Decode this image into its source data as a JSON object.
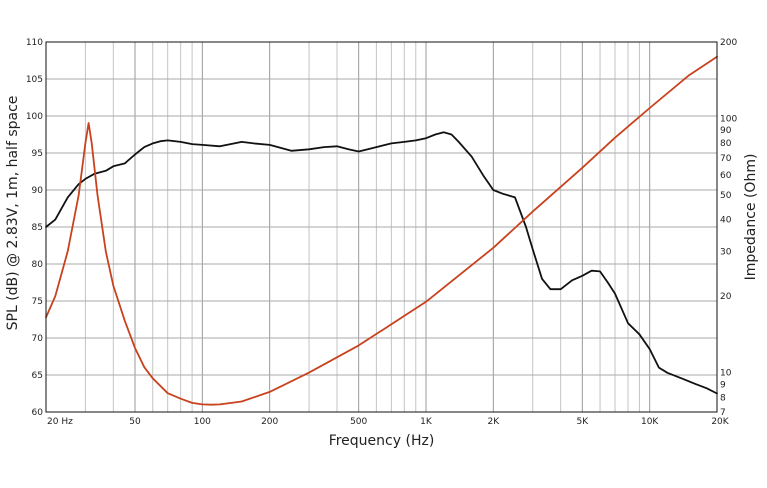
{
  "chart_data": {
    "type": "line",
    "xlabel": "Frequency (Hz)",
    "ylabel_left": "SPL (dB) @ 2.83V, 1m, half space",
    "ylabel_right": "Impedance (Ohm)",
    "x_scale": "log",
    "xlim": [
      20,
      20000
    ],
    "ylim_left": [
      60,
      110
    ],
    "ylim_right": [
      7,
      200
    ],
    "y_right_scale": "log",
    "grid": true,
    "x_ticks": [
      {
        "value": 20,
        "label": "20  Hz"
      },
      {
        "value": 50,
        "label": "50"
      },
      {
        "value": 100,
        "label": "100"
      },
      {
        "value": 200,
        "label": "200"
      },
      {
        "value": 500,
        "label": "500"
      },
      {
        "value": 1000,
        "label": "1K"
      },
      {
        "value": 2000,
        "label": "2K"
      },
      {
        "value": 5000,
        "label": "5K"
      },
      {
        "value": 10000,
        "label": "10K"
      },
      {
        "value": 20000,
        "label": "20K"
      }
    ],
    "y_left_ticks": [
      60,
      65,
      70,
      75,
      80,
      85,
      90,
      95,
      100,
      105,
      110
    ],
    "y_right_ticks": [
      {
        "value": 7,
        "label": "7"
      },
      {
        "value": 8,
        "label": "8"
      },
      {
        "value": 9,
        "label": "9"
      },
      {
        "value": 10,
        "label": "10"
      },
      {
        "value": 20,
        "label": "20"
      },
      {
        "value": 30,
        "label": "30"
      },
      {
        "value": 40,
        "label": "40"
      },
      {
        "value": 50,
        "label": "50"
      },
      {
        "value": 60,
        "label": "60"
      },
      {
        "value": 70,
        "label": "70"
      },
      {
        "value": 80,
        "label": "80"
      },
      {
        "value": 90,
        "label": "90"
      },
      {
        "value": 100,
        "label": "100"
      },
      {
        "value": 200,
        "label": "200"
      }
    ],
    "series": [
      {
        "axis": "left",
        "color": "#111111",
        "x": [
          20,
          22,
          25,
          28,
          30,
          33,
          37,
          40,
          45,
          50,
          55,
          60,
          65,
          70,
          80,
          90,
          100,
          120,
          150,
          170,
          200,
          250,
          300,
          350,
          400,
          450,
          500,
          600,
          700,
          800,
          900,
          1000,
          1100,
          1200,
          1300,
          1400,
          1600,
          1800,
          2000,
          2200,
          2500,
          2800,
          3000,
          3300,
          3600,
          4000,
          4500,
          5000,
          5500,
          6000,
          6500,
          7000,
          8000,
          9000,
          10000,
          11000,
          12000,
          14000,
          16000,
          18000,
          20000
        ],
        "values": [
          85.0,
          86.0,
          89.0,
          90.8,
          91.5,
          92.2,
          92.6,
          93.2,
          93.6,
          94.8,
          95.8,
          96.3,
          96.6,
          96.7,
          96.5,
          96.2,
          96.1,
          95.9,
          96.5,
          96.3,
          96.1,
          95.3,
          95.5,
          95.8,
          95.9,
          95.5,
          95.2,
          95.8,
          96.3,
          96.5,
          96.7,
          97.0,
          97.5,
          97.8,
          97.5,
          96.5,
          94.5,
          92.0,
          90.0,
          89.5,
          89.0,
          85.0,
          82.0,
          78.0,
          76.6,
          76.6,
          77.8,
          78.4,
          79.1,
          79.0,
          77.5,
          76.0,
          72.0,
          70.5,
          68.5,
          66.0,
          65.3,
          64.5,
          63.8,
          63.2,
          62.5
        ]
      },
      {
        "axis": "right",
        "color": "#c8421e",
        "x": [
          20,
          22,
          25,
          28,
          30,
          31,
          32,
          34,
          37,
          40,
          45,
          50,
          55,
          60,
          70,
          80,
          90,
          100,
          110,
          120,
          150,
          200,
          300,
          500,
          700,
          1000,
          2000,
          3000,
          5000,
          7000,
          10000,
          15000,
          20000
        ],
        "values": [
          16.5,
          20.0,
          30.0,
          50.0,
          80.0,
          96.0,
          80.0,
          50.0,
          30.0,
          22.0,
          16.0,
          12.5,
          10.5,
          9.5,
          8.3,
          7.9,
          7.6,
          7.5,
          7.48,
          7.5,
          7.7,
          8.4,
          10.0,
          12.8,
          15.5,
          19.0,
          31.0,
          43.0,
          64.0,
          84.0,
          110.0,
          148.0,
          175.0
        ]
      }
    ]
  }
}
